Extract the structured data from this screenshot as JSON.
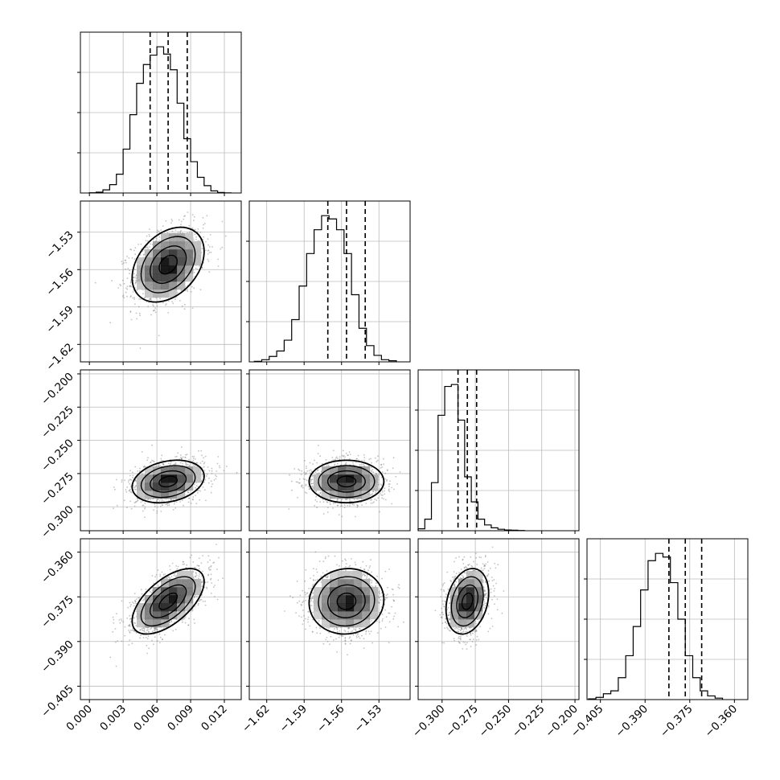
{
  "chart_data": {
    "type": "scatter",
    "title": "",
    "variables": [
      {
        "index": 0,
        "range": [
          -0.0008,
          0.0135
        ],
        "ticks": [
          0.0,
          0.003,
          0.006,
          0.009,
          0.012
        ],
        "tick_labels": [
          "0.000",
          "0.003",
          "0.006",
          "0.009",
          "0.012"
        ],
        "median": 0.007,
        "q16": 0.0054,
        "q84": 0.0087,
        "std": 0.0016
      },
      {
        "index": 1,
        "range": [
          -1.634,
          -1.505
        ],
        "ticks": [
          -1.62,
          -1.59,
          -1.56,
          -1.53
        ],
        "tick_labels": [
          "−1.62",
          "−1.59",
          "−1.56",
          "−1.53"
        ],
        "median": -1.556,
        "q16": -1.571,
        "q84": -1.541,
        "std": 0.015
      },
      {
        "index": 2,
        "range": [
          -0.318,
          -0.197
        ],
        "ticks": [
          -0.3,
          -0.275,
          -0.25,
          -0.225,
          -0.2
        ],
        "tick_labels": [
          "−0.300",
          "−0.275",
          "−0.250",
          "−0.225",
          "−0.200"
        ],
        "median": -0.281,
        "q16": -0.288,
        "q84": -0.274,
        "std": 0.008
      },
      {
        "index": 3,
        "range": [
          -0.4095,
          -0.3555
        ],
        "ticks": [
          -0.405,
          -0.39,
          -0.375,
          -0.36
        ],
        "tick_labels": [
          "−0.405",
          "−0.390",
          "−0.375",
          "−0.360"
        ],
        "median": -0.3765,
        "q16": -0.382,
        "q84": -0.371,
        "std": 0.0055
      }
    ],
    "histograms": [
      {
        "variable": 0,
        "bin_start": 0.0,
        "bin_width": 0.0006,
        "counts": [
          2,
          8,
          30,
          80,
          180,
          420,
          750,
          1050,
          1230,
          1320,
          1400,
          1330,
          1180,
          860,
          520,
          300,
          150,
          70,
          20,
          5,
          1
        ]
      },
      {
        "variable": 1,
        "bin_start": -1.63,
        "bin_width": 0.006,
        "counts": [
          5,
          20,
          50,
          100,
          200,
          390,
          700,
          1000,
          1220,
          1350,
          1320,
          1220,
          1000,
          620,
          310,
          150,
          60,
          20,
          10
        ]
      },
      {
        "variable": 2,
        "bin_start": -0.318,
        "bin_width": 0.005,
        "counts": [
          20,
          120,
          500,
          1200,
          1500,
          1520,
          1150,
          560,
          300,
          120,
          60,
          30,
          15,
          8,
          5,
          2
        ]
      },
      {
        "variable": 3,
        "bin_start": -0.409,
        "bin_width": 0.0025,
        "counts": [
          10,
          30,
          80,
          120,
          300,
          600,
          1000,
          1500,
          1900,
          2000,
          1950,
          1600,
          1100,
          600,
          300,
          120,
          50,
          20
        ]
      }
    ],
    "quantile_lines": [
      0.16,
      0.5,
      0.84
    ],
    "correlations": [
      {
        "x": 0,
        "y": 1,
        "rho": 0.35
      },
      {
        "x": 0,
        "y": 2,
        "rho": 0.25
      },
      {
        "x": 1,
        "y": 2,
        "rho": 0.0
      },
      {
        "x": 0,
        "y": 3,
        "rho": 0.6
      },
      {
        "x": 1,
        "y": 3,
        "rho": 0.05
      },
      {
        "x": 2,
        "y": 3,
        "rho": 0.25
      }
    ],
    "contour_levels_sigma": [
      0.5,
      1.0,
      1.5,
      2.0
    ],
    "grid": true,
    "legend": "none",
    "xlabel": "",
    "ylabel": ""
  }
}
